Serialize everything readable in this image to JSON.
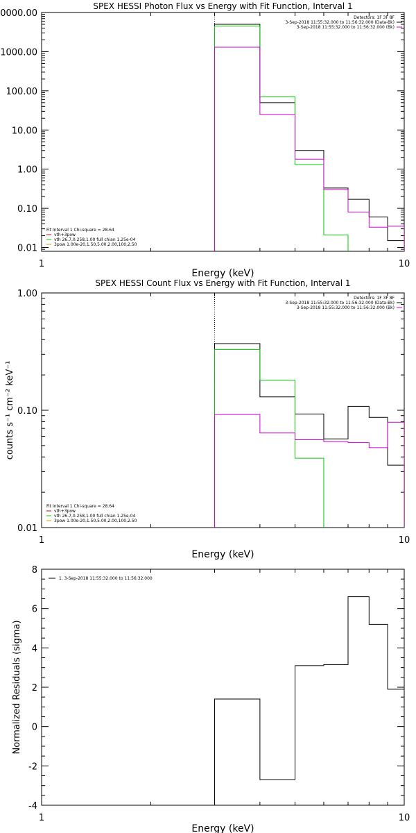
{
  "chart_data": [
    {
      "type": "line",
      "title": "SPEX HESSI Photon Flux vs Energy with Fit Function, Interval 1",
      "xlabel": "Energy (keV)",
      "ylabel": "",
      "xscale": "log",
      "yscale": "log",
      "xlim": [
        1,
        10
      ],
      "ylim": [
        0.008,
        10000
      ],
      "xticks": [
        {
          "v": 1,
          "label": "1"
        },
        {
          "v": 10,
          "label": "10"
        }
      ],
      "yticks": [
        {
          "v": 10000,
          "label": "10000.00"
        },
        {
          "v": 1000,
          "label": "1000.00"
        },
        {
          "v": 100,
          "label": "100.00"
        },
        {
          "v": 10,
          "label": "10.00"
        },
        {
          "v": 1,
          "label": "1.00"
        },
        {
          "v": 0.1,
          "label": "0.10"
        },
        {
          "v": 0.01,
          "label": "0.01"
        }
      ],
      "fit_start_keV": 3,
      "legend_top_right": [
        {
          "text": "Detectors: 1F 3F 8F",
          "color": "#000000"
        },
        {
          "text": "3-Sep-2018 11:55:32.000 to 11:56:32.000 (Data-Bk)",
          "color": "#000000"
        },
        {
          "text": "3-Sep-2018 11:55:32.000 to 11:56:32.000 (Bk)",
          "color": "#cc00cc"
        }
      ],
      "legend_bottom_left": [
        {
          "text": "Fit Interval 1   Chi-square = 28.64",
          "color": "#000000"
        },
        {
          "text": "vth+3pow",
          "color": "#cc0000"
        },
        {
          "text": "vth 26.7,0.258,1.00  full chian 1.25e-04",
          "color": "#00cc00"
        },
        {
          "text": "3pow 1.00e-20,1.50,5.00,2.00,100,2.50",
          "color": "#c8a000"
        }
      ],
      "series": [
        {
          "color": "#000000",
          "edges": [
            3,
            4,
            5,
            6,
            7,
            8,
            9,
            10
          ],
          "values": [
            5000,
            50,
            3.0,
            0.33,
            0.17,
            0.06,
            0.015
          ]
        },
        {
          "color": "#00cc00",
          "edges": [
            3,
            4,
            5,
            6,
            7
          ],
          "values": [
            4500,
            70,
            1.3,
            0.021
          ]
        },
        {
          "color": "#cc00cc",
          "edges": [
            3,
            4,
            5,
            6,
            7,
            8,
            9,
            10
          ],
          "values": [
            1300,
            25,
            1.8,
            0.3,
            0.08,
            0.033,
            0.035
          ]
        }
      ]
    },
    {
      "type": "line",
      "title": "SPEX HESSI Count Flux vs Energy with Fit Function, Interval 1",
      "xlabel": "Energy (keV)",
      "ylabel": "counts s⁻¹ cm⁻² keV⁻¹",
      "xscale": "log",
      "yscale": "log",
      "xlim": [
        1,
        10
      ],
      "ylim": [
        0.01,
        1.0
      ],
      "xticks": [
        {
          "v": 1,
          "label": "1"
        },
        {
          "v": 10,
          "label": "10"
        }
      ],
      "yticks": [
        {
          "v": 1,
          "label": "1.00"
        },
        {
          "v": 0.1,
          "label": "0.10"
        },
        {
          "v": 0.01,
          "label": "0.01"
        }
      ],
      "fit_start_keV": 3,
      "legend_top_right": [
        {
          "text": "Detectors: 1F 3F 8F",
          "color": "#000000"
        },
        {
          "text": "3-Sep-2018 11:55:32.000 to 11:56:32.000 (Data-Bk)",
          "color": "#000000"
        },
        {
          "text": "3-Sep-2018 11:55:32.000 to 11:56:32.000 (Bk)",
          "color": "#cc00cc"
        }
      ],
      "legend_bottom_left": [
        {
          "text": "Fit Interval 1   Chi-square = 28.64",
          "color": "#000000"
        },
        {
          "text": "vth+3pow",
          "color": "#cc0000"
        },
        {
          "text": "vth 26.7,0.258,1.00  full chian 1.25e-04",
          "color": "#00cc00"
        },
        {
          "text": "3pow 1.00e-20,1.50,5.00,2.00,100,2.50",
          "color": "#c8a000"
        }
      ],
      "series": [
        {
          "color": "#000000",
          "edges": [
            3,
            4,
            5,
            6,
            7,
            8,
            9,
            10
          ],
          "values": [
            0.37,
            0.13,
            0.093,
            0.057,
            0.108,
            0.087,
            0.034
          ]
        },
        {
          "color": "#00cc00",
          "edges": [
            3,
            4,
            5,
            6
          ],
          "values": [
            0.33,
            0.18,
            0.039
          ]
        },
        {
          "color": "#cc00cc",
          "edges": [
            3,
            4,
            5,
            6,
            7,
            8,
            9,
            10
          ],
          "values": [
            0.092,
            0.064,
            0.056,
            0.054,
            0.053,
            0.048,
            0.079
          ]
        }
      ]
    },
    {
      "type": "line",
      "title": "",
      "xlabel": "Energy (keV)",
      "ylabel": "Normalized Residuals (sigma)",
      "xscale": "log",
      "yscale": "linear",
      "xlim": [
        1,
        10
      ],
      "ylim": [
        -4,
        8
      ],
      "xticks": [
        {
          "v": 1,
          "label": "1"
        },
        {
          "v": 10,
          "label": "10"
        }
      ],
      "yticks": [
        {
          "v": 8,
          "label": "8"
        },
        {
          "v": 6,
          "label": "6"
        },
        {
          "v": 4,
          "label": "4"
        },
        {
          "v": 2,
          "label": "2"
        },
        {
          "v": 0,
          "label": "0"
        },
        {
          "v": -2,
          "label": "-2"
        },
        {
          "v": -4,
          "label": "-4"
        }
      ],
      "legend_top_left": [
        {
          "text": "1.  3-Sep-2018 11:55:32.000 to 11:56:32.000",
          "color": "#000000"
        }
      ],
      "series": [
        {
          "color": "#000000",
          "edges": [
            3,
            4,
            5,
            6,
            7,
            8,
            9,
            10
          ],
          "values": [
            1.4,
            -2.7,
            3.1,
            3.15,
            6.6,
            5.2,
            1.9
          ]
        }
      ]
    }
  ]
}
